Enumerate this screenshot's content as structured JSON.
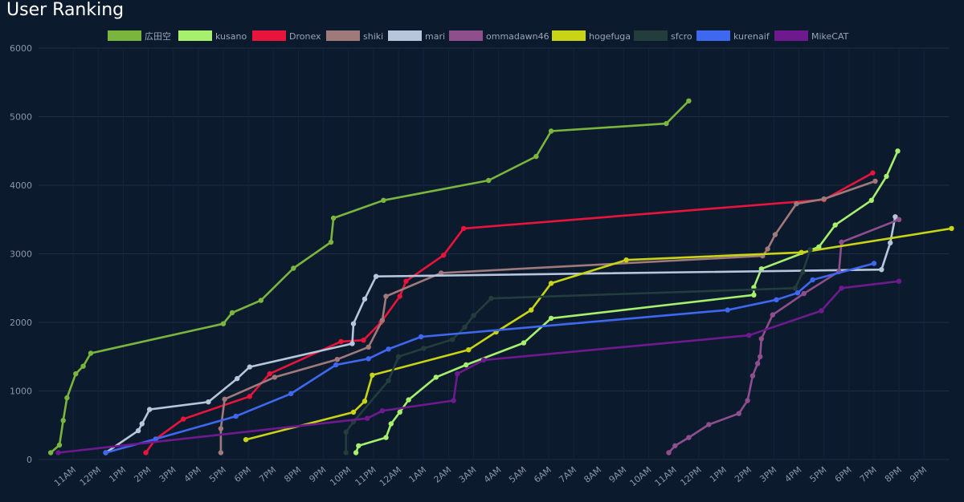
{
  "page": {
    "title": "User Ranking"
  },
  "chart_data": {
    "type": "line",
    "title": "User Ranking",
    "xlabel": "",
    "ylabel": "",
    "ylim": [
      0,
      6000
    ],
    "yticks": [
      0,
      1000,
      2000,
      3000,
      4000,
      5000,
      6000
    ],
    "x_unit": "hours (10AM of day 1 = 0)",
    "xlim": [
      0,
      36
    ],
    "xticks": [
      {
        "x": 1,
        "label": "11AM"
      },
      {
        "x": 2,
        "label": "12PM"
      },
      {
        "x": 3,
        "label": "1PM"
      },
      {
        "x": 4,
        "label": "2PM"
      },
      {
        "x": 5,
        "label": "3PM"
      },
      {
        "x": 6,
        "label": "4PM"
      },
      {
        "x": 7,
        "label": "5PM"
      },
      {
        "x": 8,
        "label": "6PM"
      },
      {
        "x": 9,
        "label": "7PM"
      },
      {
        "x": 10,
        "label": "8PM"
      },
      {
        "x": 11,
        "label": "9PM"
      },
      {
        "x": 12,
        "label": "10PM"
      },
      {
        "x": 13,
        "label": "11PM"
      },
      {
        "x": 14,
        "label": "12AM"
      },
      {
        "x": 15,
        "label": "1AM"
      },
      {
        "x": 16,
        "label": "2AM"
      },
      {
        "x": 17,
        "label": "3AM"
      },
      {
        "x": 18,
        "label": "4AM"
      },
      {
        "x": 19,
        "label": "5AM"
      },
      {
        "x": 20,
        "label": "6AM"
      },
      {
        "x": 21,
        "label": "7AM"
      },
      {
        "x": 22,
        "label": "8AM"
      },
      {
        "x": 23,
        "label": "9AM"
      },
      {
        "x": 24,
        "label": "10AM"
      },
      {
        "x": 25,
        "label": "11AM"
      },
      {
        "x": 26,
        "label": "12PM"
      },
      {
        "x": 27,
        "label": "1PM"
      },
      {
        "x": 28,
        "label": "2PM"
      },
      {
        "x": 29,
        "label": "3PM"
      },
      {
        "x": 30,
        "label": "4PM"
      },
      {
        "x": 31,
        "label": "5PM"
      },
      {
        "x": 32,
        "label": "6PM"
      },
      {
        "x": 33,
        "label": "7PM"
      },
      {
        "x": 34,
        "label": "8PM"
      },
      {
        "x": 35,
        "label": "9PM"
      }
    ],
    "grid": true,
    "legend_position": "top",
    "series": [
      {
        "name": "広田空",
        "color": "#7ab53d",
        "points": [
          [
            0.1,
            100
          ],
          [
            0.45,
            210
          ],
          [
            0.6,
            570
          ],
          [
            0.75,
            900
          ],
          [
            1.1,
            1250
          ],
          [
            1.4,
            1360
          ],
          [
            1.7,
            1550
          ],
          [
            7.0,
            1980
          ],
          [
            7.35,
            2140
          ],
          [
            8.5,
            2320
          ],
          [
            9.8,
            2790
          ],
          [
            11.3,
            3170
          ],
          [
            11.4,
            3520
          ],
          [
            13.4,
            3780
          ],
          [
            17.6,
            4070
          ],
          [
            19.5,
            4420
          ],
          [
            20.1,
            4790
          ],
          [
            24.7,
            4900
          ],
          [
            25.6,
            5230
          ]
        ]
      },
      {
        "name": "kusano",
        "color": "#a6f06e",
        "points": [
          [
            12.3,
            100
          ],
          [
            12.4,
            200
          ],
          [
            13.5,
            320
          ],
          [
            13.7,
            520
          ],
          [
            14.05,
            690
          ],
          [
            14.4,
            870
          ],
          [
            15.5,
            1200
          ],
          [
            16.7,
            1380
          ],
          [
            19.0,
            1700
          ],
          [
            20.1,
            2060
          ],
          [
            28.2,
            2400
          ],
          [
            28.2,
            2510
          ],
          [
            28.5,
            2780
          ],
          [
            30.8,
            3100
          ],
          [
            31.45,
            3420
          ],
          [
            32.9,
            3780
          ],
          [
            33.5,
            4130
          ],
          [
            33.95,
            4500
          ]
        ]
      },
      {
        "name": "Dronex",
        "color": "#e8143c",
        "points": [
          [
            3.9,
            100
          ],
          [
            4.3,
            300
          ],
          [
            5.4,
            590
          ],
          [
            8.05,
            920
          ],
          [
            8.85,
            1250
          ],
          [
            11.7,
            1720
          ],
          [
            12.6,
            1740
          ],
          [
            13.3,
            2000
          ],
          [
            14.05,
            2380
          ],
          [
            14.3,
            2600
          ],
          [
            15.8,
            2980
          ],
          [
            16.6,
            3370
          ],
          [
            31.0,
            3790
          ],
          [
            32.95,
            4180
          ]
        ]
      },
      {
        "name": "shiki",
        "color": "#a07a7a",
        "points": [
          [
            6.9,
            100
          ],
          [
            6.9,
            450
          ],
          [
            7.05,
            880
          ],
          [
            9.05,
            1200
          ],
          [
            11.55,
            1460
          ],
          [
            12.8,
            1640
          ],
          [
            13.35,
            2030
          ],
          [
            13.5,
            2380
          ],
          [
            15.7,
            2720
          ],
          [
            28.55,
            2970
          ],
          [
            28.75,
            3070
          ],
          [
            29.05,
            3280
          ],
          [
            29.9,
            3730
          ],
          [
            31.0,
            3800
          ],
          [
            33.05,
            4060
          ]
        ]
      },
      {
        "name": "mari",
        "color": "#b8c6dc",
        "points": [
          [
            2.3,
            100
          ],
          [
            3.6,
            420
          ],
          [
            3.75,
            520
          ],
          [
            4.05,
            730
          ],
          [
            6.4,
            840
          ],
          [
            7.55,
            1180
          ],
          [
            8.05,
            1350
          ],
          [
            12.15,
            1690
          ],
          [
            12.2,
            1980
          ],
          [
            12.65,
            2340
          ],
          [
            13.1,
            2670
          ],
          [
            33.3,
            2770
          ],
          [
            33.65,
            3160
          ],
          [
            33.85,
            3540
          ]
        ]
      },
      {
        "name": "ommadawn46",
        "color": "#8e4f8c",
        "points": [
          [
            24.8,
            100
          ],
          [
            25.05,
            200
          ],
          [
            25.6,
            320
          ],
          [
            26.4,
            510
          ],
          [
            27.6,
            670
          ],
          [
            27.95,
            860
          ],
          [
            28.15,
            1220
          ],
          [
            28.35,
            1400
          ],
          [
            28.45,
            1500
          ],
          [
            28.5,
            1760
          ],
          [
            28.95,
            2110
          ],
          [
            30.2,
            2420
          ],
          [
            31.6,
            2740
          ],
          [
            31.7,
            3170
          ],
          [
            34.0,
            3500
          ]
        ]
      },
      {
        "name": "hogefuga",
        "color": "#c8d414",
        "points": [
          [
            7.9,
            290
          ],
          [
            12.2,
            690
          ],
          [
            12.65,
            850
          ],
          [
            12.95,
            1230
          ],
          [
            16.8,
            1600
          ],
          [
            17.9,
            1860
          ],
          [
            19.3,
            2180
          ],
          [
            20.1,
            2570
          ],
          [
            23.1,
            2910
          ],
          [
            30.1,
            3020
          ],
          [
            36.1,
            3370
          ]
        ]
      },
      {
        "name": "sfcro",
        "color": "#223d3c",
        "points": [
          [
            11.9,
            100
          ],
          [
            11.9,
            400
          ],
          [
            12.2,
            550
          ],
          [
            13.6,
            1150
          ],
          [
            14.0,
            1500
          ],
          [
            15.0,
            1620
          ],
          [
            16.15,
            1750
          ],
          [
            16.65,
            1930
          ],
          [
            17.0,
            2100
          ],
          [
            17.7,
            2350
          ],
          [
            29.85,
            2500
          ],
          [
            30.15,
            2730
          ],
          [
            30.45,
            3060
          ]
        ]
      },
      {
        "name": "kurenaif",
        "color": "#3e68f0",
        "points": [
          [
            2.3,
            100
          ],
          [
            4.3,
            300
          ],
          [
            7.5,
            630
          ],
          [
            9.7,
            960
          ],
          [
            11.5,
            1380
          ],
          [
            12.8,
            1470
          ],
          [
            13.6,
            1610
          ],
          [
            14.9,
            1790
          ],
          [
            27.15,
            2180
          ],
          [
            29.1,
            2330
          ],
          [
            29.95,
            2430
          ],
          [
            30.55,
            2620
          ],
          [
            33.0,
            2860
          ]
        ]
      },
      {
        "name": "MikeCAT",
        "color": "#6e1a8e",
        "points": [
          [
            0.4,
            100
          ],
          [
            12.75,
            600
          ],
          [
            13.35,
            710
          ],
          [
            16.2,
            860
          ],
          [
            16.35,
            1250
          ],
          [
            17.4,
            1450
          ],
          [
            28.0,
            1810
          ],
          [
            30.9,
            2170
          ],
          [
            31.7,
            2500
          ],
          [
            34.0,
            2600
          ]
        ]
      }
    ]
  }
}
